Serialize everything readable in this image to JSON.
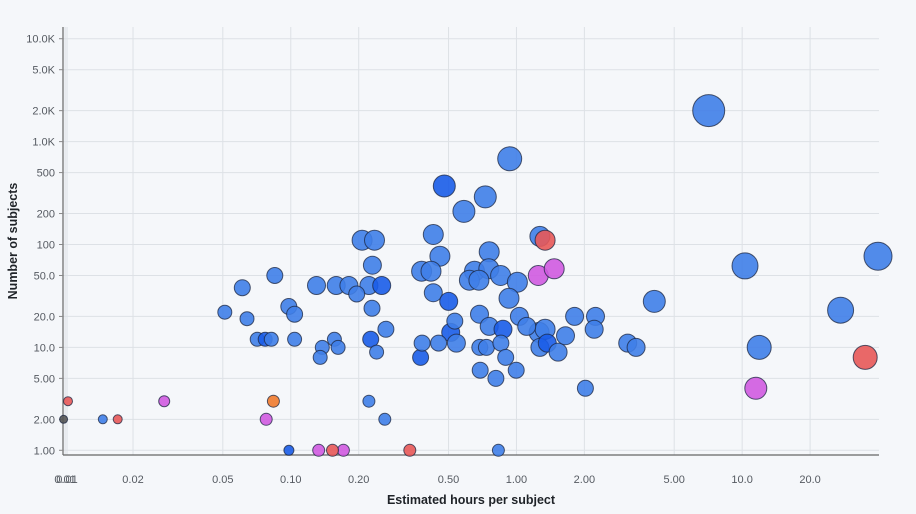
{
  "chart_data": {
    "type": "scatter",
    "xlabel": "Estimated hours per subject",
    "ylabel": "Number of subjects",
    "x_scale": "log",
    "y_scale": "log",
    "xlim": [
      0.00979,
      40.4
    ],
    "ylim": [
      0.9,
      13000
    ],
    "x_ticks": [
      {
        "value": 0.01,
        "label": "0.01"
      },
      {
        "value": 0.0102,
        "label": "0.01"
      },
      {
        "value": 0.02,
        "label": "0.02"
      },
      {
        "value": 0.05,
        "label": "0.05"
      },
      {
        "value": 0.1,
        "label": "0.10"
      },
      {
        "value": 0.2,
        "label": "0.20"
      },
      {
        "value": 0.5,
        "label": "0.50"
      },
      {
        "value": 1,
        "label": "1.00"
      },
      {
        "value": 2,
        "label": "2.00"
      },
      {
        "value": 5,
        "label": "5.00"
      },
      {
        "value": 10,
        "label": "10.0"
      },
      {
        "value": 20,
        "label": "20.0"
      }
    ],
    "y_ticks": [
      {
        "value": 1,
        "label": "1.00"
      },
      {
        "value": 2,
        "label": "2.00"
      },
      {
        "value": 5,
        "label": "5.00"
      },
      {
        "value": 10,
        "label": "10.0"
      },
      {
        "value": 20,
        "label": "20.0"
      },
      {
        "value": 50,
        "label": "50.0"
      },
      {
        "value": 100,
        "label": "100"
      },
      {
        "value": 200,
        "label": "200"
      },
      {
        "value": 500,
        "label": "500"
      },
      {
        "value": 1000,
        "label": "1.0K"
      },
      {
        "value": 2000,
        "label": "2.0K"
      },
      {
        "value": 5000,
        "label": "5.0K"
      },
      {
        "value": 10000,
        "label": "10.0K"
      }
    ],
    "grid": true,
    "colors": {
      "blue": "#3f7ee8",
      "dark_blue": "#1a5ce8",
      "red": "#e85858",
      "magenta": "#d05ae0",
      "orange": "#f07a2e",
      "gray": "#555555"
    },
    "points": [
      {
        "x": 7.11,
        "y": 2000,
        "size": 16,
        "color": "blue"
      },
      {
        "x": 10.3,
        "y": 62,
        "size": 13,
        "color": "blue"
      },
      {
        "x": 40.0,
        "y": 77,
        "size": 14,
        "color": "blue"
      },
      {
        "x": 27.3,
        "y": 23,
        "size": 13,
        "color": "blue"
      },
      {
        "x": 11.9,
        "y": 10,
        "size": 12,
        "color": "blue"
      },
      {
        "x": 35.1,
        "y": 8,
        "size": 12,
        "color": "red"
      },
      {
        "x": 11.5,
        "y": 4,
        "size": 11,
        "color": "magenta"
      },
      {
        "x": 4.08,
        "y": 28,
        "size": 11,
        "color": "blue"
      },
      {
        "x": 0.933,
        "y": 680,
        "size": 12,
        "color": "blue"
      },
      {
        "x": 0.479,
        "y": 370,
        "size": 11,
        "color": "dark_blue"
      },
      {
        "x": 0.728,
        "y": 290,
        "size": 11,
        "color": "blue"
      },
      {
        "x": 0.585,
        "y": 210,
        "size": 11,
        "color": "blue"
      },
      {
        "x": 0.428,
        "y": 125,
        "size": 10,
        "color": "blue"
      },
      {
        "x": 0.458,
        "y": 77,
        "size": 10,
        "color": "blue"
      },
      {
        "x": 0.757,
        "y": 85,
        "size": 10,
        "color": "blue"
      },
      {
        "x": 0.38,
        "y": 55,
        "size": 10,
        "color": "blue"
      },
      {
        "x": 0.418,
        "y": 55,
        "size": 10,
        "color": "blue"
      },
      {
        "x": 0.652,
        "y": 55,
        "size": 10,
        "color": "blue"
      },
      {
        "x": 0.754,
        "y": 58,
        "size": 10,
        "color": "blue"
      },
      {
        "x": 0.619,
        "y": 45,
        "size": 10,
        "color": "blue"
      },
      {
        "x": 0.682,
        "y": 45,
        "size": 10,
        "color": "blue"
      },
      {
        "x": 0.851,
        "y": 50,
        "size": 10,
        "color": "blue"
      },
      {
        "x": 1.01,
        "y": 43,
        "size": 10,
        "color": "blue"
      },
      {
        "x": 0.428,
        "y": 34,
        "size": 9,
        "color": "blue"
      },
      {
        "x": 0.501,
        "y": 28,
        "size": 9,
        "color": "dark_blue"
      },
      {
        "x": 0.927,
        "y": 30,
        "size": 10,
        "color": "blue"
      },
      {
        "x": 0.207,
        "y": 110,
        "size": 10,
        "color": "blue"
      },
      {
        "x": 0.235,
        "y": 110,
        "size": 10,
        "color": "blue"
      },
      {
        "x": 0.23,
        "y": 63,
        "size": 9,
        "color": "blue"
      },
      {
        "x": 0.085,
        "y": 50,
        "size": 8,
        "color": "blue"
      },
      {
        "x": 0.061,
        "y": 38,
        "size": 8,
        "color": "blue"
      },
      {
        "x": 0.13,
        "y": 40,
        "size": 9,
        "color": "blue"
      },
      {
        "x": 0.159,
        "y": 40,
        "size": 9,
        "color": "blue"
      },
      {
        "x": 0.181,
        "y": 40,
        "size": 9,
        "color": "blue"
      },
      {
        "x": 0.222,
        "y": 40,
        "size": 9,
        "color": "blue"
      },
      {
        "x": 0.253,
        "y": 40,
        "size": 9,
        "color": "dark_blue"
      },
      {
        "x": 0.196,
        "y": 33,
        "size": 8,
        "color": "blue"
      },
      {
        "x": 0.098,
        "y": 25,
        "size": 8,
        "color": "blue"
      },
      {
        "x": 0.104,
        "y": 21,
        "size": 8,
        "color": "blue"
      },
      {
        "x": 0.229,
        "y": 24,
        "size": 8,
        "color": "blue"
      },
      {
        "x": 0.051,
        "y": 22,
        "size": 7,
        "color": "blue"
      },
      {
        "x": 0.064,
        "y": 19,
        "size": 7,
        "color": "blue"
      },
      {
        "x": 0.071,
        "y": 12,
        "size": 7,
        "color": "blue"
      },
      {
        "x": 0.077,
        "y": 12,
        "size": 7,
        "color": "dark_blue"
      },
      {
        "x": 0.082,
        "y": 12,
        "size": 7,
        "color": "blue"
      },
      {
        "x": 0.104,
        "y": 12,
        "size": 7,
        "color": "blue"
      },
      {
        "x": 0.156,
        "y": 12,
        "size": 7,
        "color": "blue"
      },
      {
        "x": 0.162,
        "y": 10,
        "size": 7,
        "color": "blue"
      },
      {
        "x": 0.226,
        "y": 12,
        "size": 8,
        "color": "dark_blue"
      },
      {
        "x": 0.264,
        "y": 15,
        "size": 8,
        "color": "blue"
      },
      {
        "x": 0.138,
        "y": 10,
        "size": 7,
        "color": "blue"
      },
      {
        "x": 0.135,
        "y": 8,
        "size": 7,
        "color": "blue"
      },
      {
        "x": 0.24,
        "y": 9,
        "size": 7,
        "color": "blue"
      },
      {
        "x": 0.376,
        "y": 8,
        "size": 8,
        "color": "dark_blue"
      },
      {
        "x": 0.382,
        "y": 11,
        "size": 8,
        "color": "blue"
      },
      {
        "x": 0.452,
        "y": 11,
        "size": 8,
        "color": "blue"
      },
      {
        "x": 0.533,
        "y": 18,
        "size": 8,
        "color": "blue"
      },
      {
        "x": 0.511,
        "y": 14,
        "size": 9,
        "color": "dark_blue"
      },
      {
        "x": 0.542,
        "y": 11,
        "size": 9,
        "color": "blue"
      },
      {
        "x": 0.686,
        "y": 21,
        "size": 9,
        "color": "blue"
      },
      {
        "x": 0.757,
        "y": 16,
        "size": 9,
        "color": "blue"
      },
      {
        "x": 0.872,
        "y": 15,
        "size": 9,
        "color": "dark_blue"
      },
      {
        "x": 1.03,
        "y": 20,
        "size": 9,
        "color": "blue"
      },
      {
        "x": 1.11,
        "y": 16,
        "size": 9,
        "color": "blue"
      },
      {
        "x": 0.688,
        "y": 10,
        "size": 8,
        "color": "blue"
      },
      {
        "x": 0.736,
        "y": 10,
        "size": 8,
        "color": "blue"
      },
      {
        "x": 0.853,
        "y": 11,
        "size": 8,
        "color": "blue"
      },
      {
        "x": 0.896,
        "y": 8,
        "size": 8,
        "color": "blue"
      },
      {
        "x": 0.691,
        "y": 6,
        "size": 8,
        "color": "blue"
      },
      {
        "x": 0.811,
        "y": 5,
        "size": 8,
        "color": "blue"
      },
      {
        "x": 0.997,
        "y": 6,
        "size": 8,
        "color": "blue"
      },
      {
        "x": 1.27,
        "y": 120,
        "size": 10,
        "color": "blue"
      },
      {
        "x": 1.34,
        "y": 110,
        "size": 10,
        "color": "red"
      },
      {
        "x": 1.25,
        "y": 50,
        "size": 10,
        "color": "magenta"
      },
      {
        "x": 1.47,
        "y": 58,
        "size": 10,
        "color": "magenta"
      },
      {
        "x": 1.26,
        "y": 14,
        "size": 10,
        "color": "blue"
      },
      {
        "x": 1.34,
        "y": 15,
        "size": 10,
        "color": "blue"
      },
      {
        "x": 1.27,
        "y": 10,
        "size": 9,
        "color": "blue"
      },
      {
        "x": 1.37,
        "y": 11,
        "size": 9,
        "color": "dark_blue"
      },
      {
        "x": 1.53,
        "y": 9,
        "size": 9,
        "color": "blue"
      },
      {
        "x": 1.65,
        "y": 13,
        "size": 9,
        "color": "blue"
      },
      {
        "x": 1.81,
        "y": 20,
        "size": 9,
        "color": "blue"
      },
      {
        "x": 2.24,
        "y": 20,
        "size": 9,
        "color": "blue"
      },
      {
        "x": 2.21,
        "y": 15,
        "size": 9,
        "color": "blue"
      },
      {
        "x": 3.11,
        "y": 11,
        "size": 9,
        "color": "blue"
      },
      {
        "x": 3.39,
        "y": 10,
        "size": 9,
        "color": "blue"
      },
      {
        "x": 2.02,
        "y": 4,
        "size": 8,
        "color": "blue"
      },
      {
        "x": 0.222,
        "y": 3,
        "size": 6,
        "color": "blue"
      },
      {
        "x": 0.261,
        "y": 2,
        "size": 6,
        "color": "blue"
      },
      {
        "x": 0.0981,
        "y": 1,
        "size": 5,
        "color": "dark_blue"
      },
      {
        "x": 0.0838,
        "y": 3,
        "size": 6,
        "color": "orange"
      },
      {
        "x": 0.0778,
        "y": 2,
        "size": 6,
        "color": "magenta"
      },
      {
        "x": 0.133,
        "y": 1,
        "size": 6,
        "color": "magenta"
      },
      {
        "x": 0.171,
        "y": 1,
        "size": 6,
        "color": "magenta"
      },
      {
        "x": 0.153,
        "y": 1,
        "size": 6,
        "color": "red"
      },
      {
        "x": 0.337,
        "y": 1,
        "size": 6,
        "color": "red"
      },
      {
        "x": 0.832,
        "y": 1,
        "size": 6,
        "color": "blue"
      },
      {
        "x": 0.0147,
        "y": 2,
        "size": 4.5,
        "color": "blue"
      },
      {
        "x": 0.0171,
        "y": 2,
        "size": 4.5,
        "color": "red"
      },
      {
        "x": 0.0275,
        "y": 3,
        "size": 5.5,
        "color": "magenta"
      },
      {
        "x": 0.0103,
        "y": 3,
        "size": 4.5,
        "color": "red"
      },
      {
        "x": 0.00985,
        "y": 2,
        "size": 4,
        "color": "gray"
      }
    ]
  }
}
